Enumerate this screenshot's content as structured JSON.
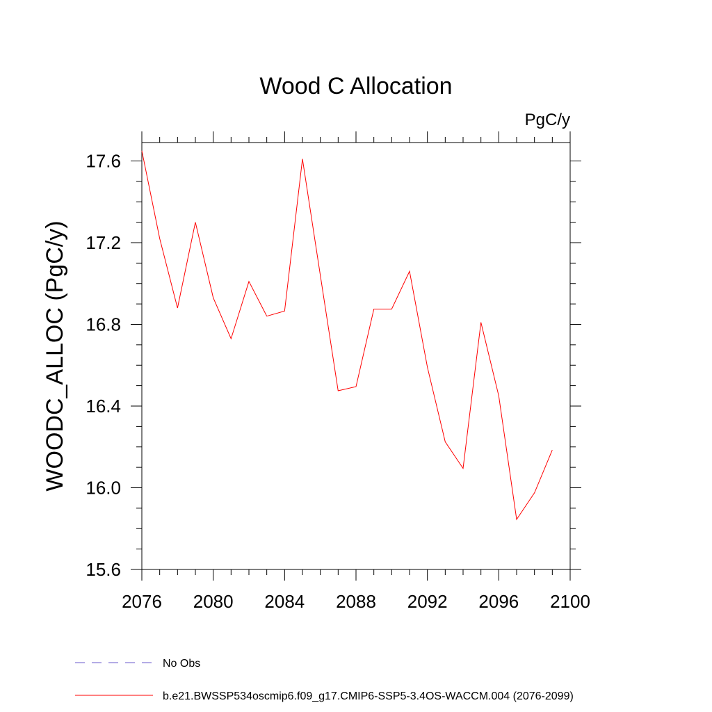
{
  "chart_data": {
    "type": "line",
    "title": "Wood C Allocation",
    "units_label": "PgC/y",
    "ylabel": "WOODC_ALLOC  (PgC/y)",
    "xlabel": "",
    "xlim": [
      2076,
      2100
    ],
    "ylim": [
      15.6,
      17.7
    ],
    "x_ticks": [
      "2076",
      "2080",
      "2084",
      "2088",
      "2092",
      "2096",
      "2100"
    ],
    "y_ticks": [
      "15.6",
      "16.0",
      "16.4",
      "16.8",
      "17.2",
      "17.6"
    ],
    "grid": false,
    "legend_position": "bottom-left",
    "series": [
      {
        "name": "b.e21.BWSSP534oscmip6.f09_g17.CMIP6-SSP5-3.4OS-WACCM.004 (2076-2099)",
        "color": "#ff0000",
        "style": "solid",
        "x": [
          2076,
          2077,
          2078,
          2079,
          2080,
          2081,
          2082,
          2083,
          2084,
          2085,
          2086,
          2087,
          2088,
          2089,
          2090,
          2091,
          2092,
          2093,
          2094,
          2095,
          2096,
          2097,
          2098,
          2099
        ],
        "y": [
          17.65,
          17.22,
          16.88,
          17.3,
          16.93,
          16.73,
          17.01,
          16.84,
          16.865,
          17.61,
          17.04,
          16.475,
          16.495,
          16.875,
          16.875,
          17.06,
          16.59,
          16.225,
          16.095,
          16.81,
          16.45,
          15.845,
          15.975,
          16.185
        ]
      }
    ],
    "legend": [
      {
        "label": "No Obs",
        "color": "#6a5acd",
        "style": "dashed"
      },
      {
        "label": "b.e21.BWSSP534oscmip6.f09_g17.CMIP6-SSP5-3.4OS-WACCM.004 (2076-2099)",
        "color": "#ff0000",
        "style": "solid"
      }
    ]
  }
}
